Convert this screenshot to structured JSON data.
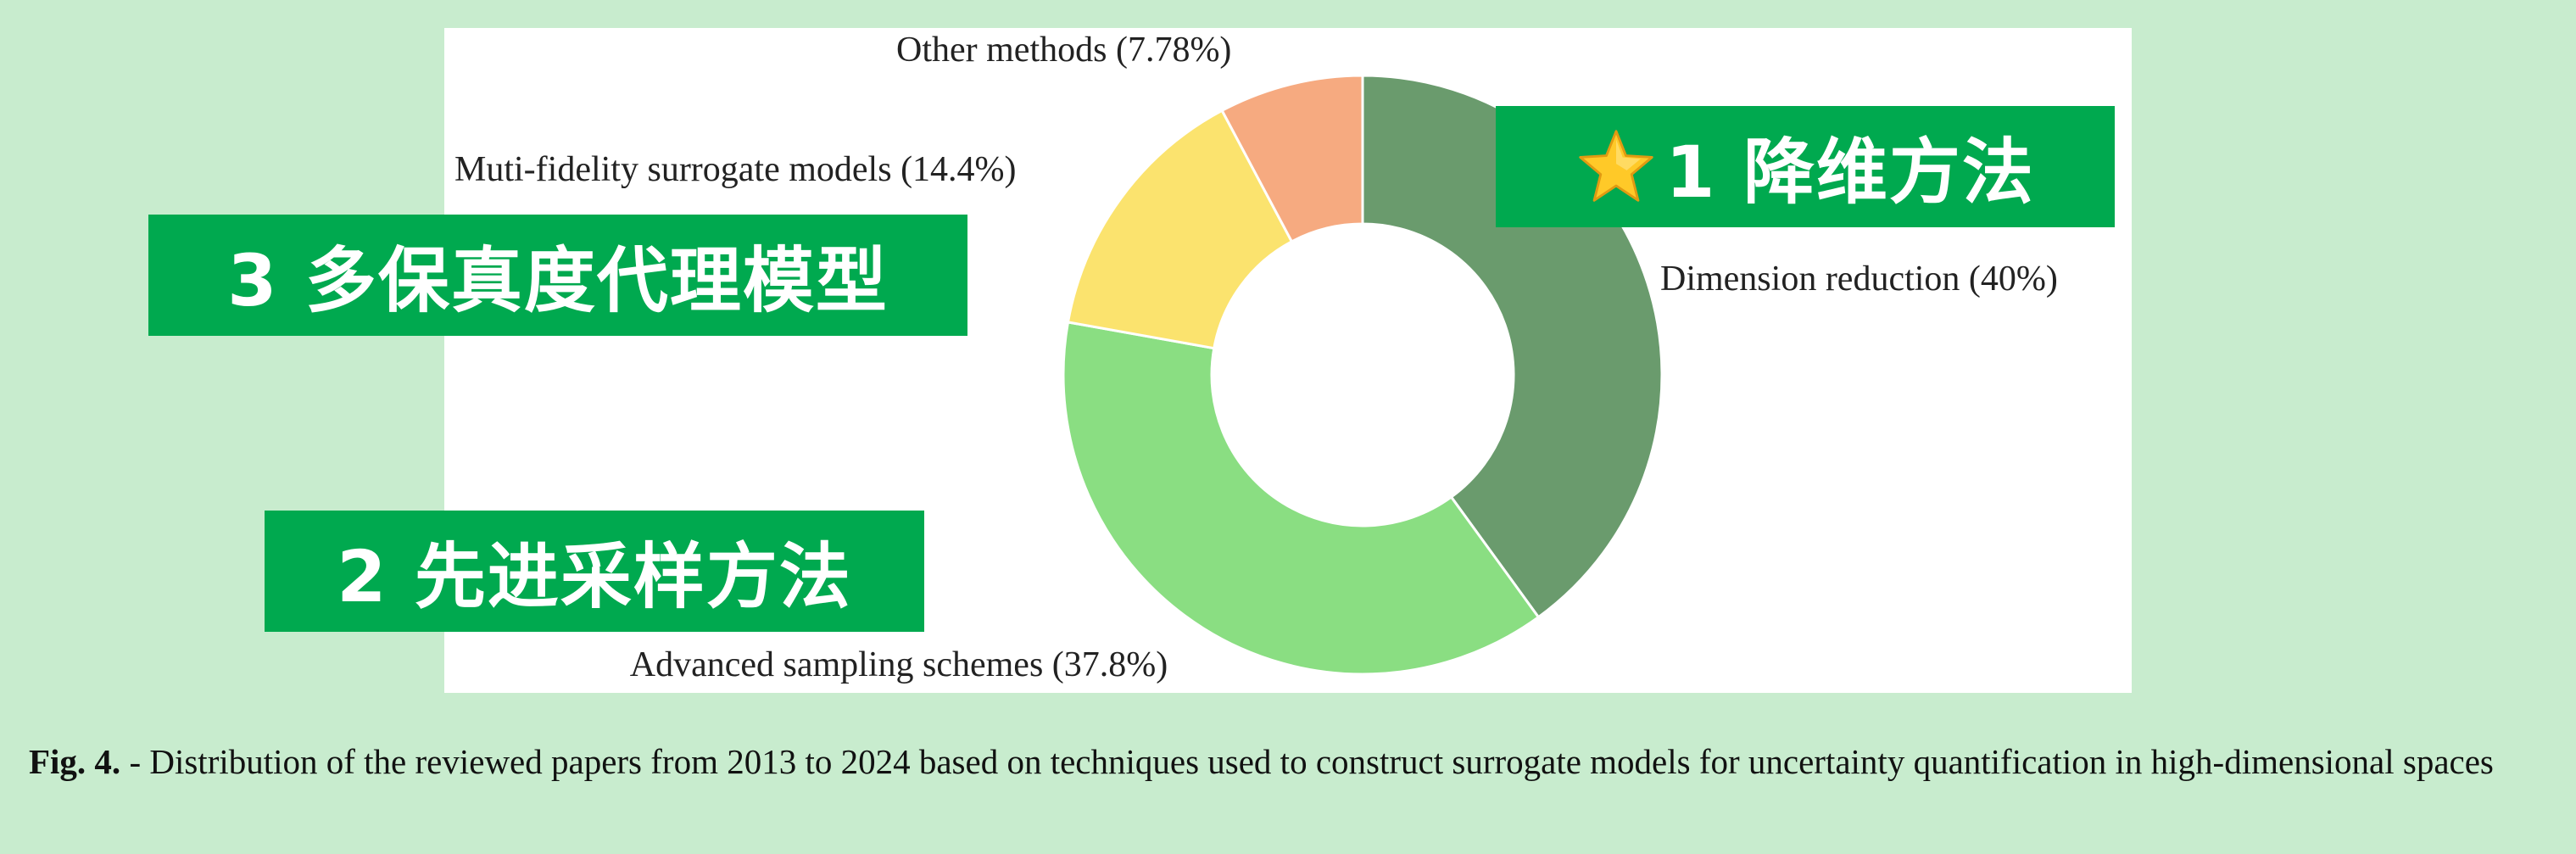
{
  "chart_data": {
    "type": "pie",
    "donut": true,
    "categories": [
      "Dimension reduction",
      "Advanced sampling schemes",
      "Muti-fidelity surrogate models",
      "Other methods"
    ],
    "values": [
      40,
      37.8,
      14.4,
      7.78
    ],
    "labels": [
      "Dimension reduction (40%)",
      "Advanced sampling schemes (37.8%)",
      "Muti-fidelity surrogate models (14.4%)",
      "Other methods (7.78%)"
    ],
    "colors": [
      "#6a9b6d",
      "#8ade82",
      "#fbe36e",
      "#f6aa80"
    ],
    "start": "top",
    "direction": "clockwise"
  },
  "banners": {
    "rank1": "1 降维方法",
    "rank2": "2 先进采样方法",
    "rank3": "3 多保真度代理模型",
    "rank1_icon": "star-icon"
  },
  "caption": {
    "lead": "Fig. 4.",
    "text": " - Distribution of the reviewed papers from 2013 to 2024 based on techniques used to construct surrogate models for uncertainty quantification in high-dimensional spaces"
  }
}
